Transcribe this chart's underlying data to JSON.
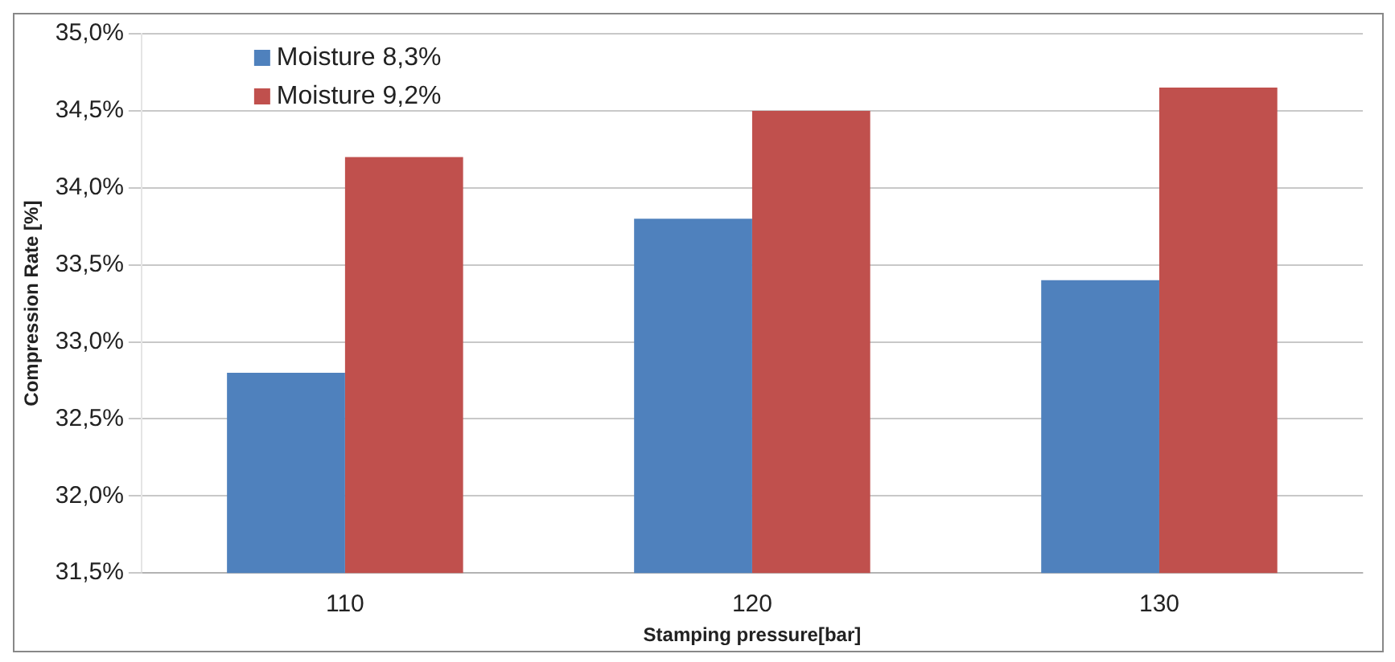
{
  "chart_data": {
    "type": "bar",
    "xlabel": "Stamping pressure[bar]",
    "ylabel": "Compression Rate [%]",
    "categories": [
      "110",
      "120",
      "130"
    ],
    "series": [
      {
        "name": "Moisture 8,3%",
        "color": "#4f81bd",
        "values": [
          32.8,
          33.8,
          33.4
        ]
      },
      {
        "name": "Moisture 9,2%",
        "color": "#c0504d",
        "values": [
          34.2,
          34.5,
          34.65
        ]
      }
    ],
    "ylim": [
      31.5,
      35
    ],
    "yticks": [
      {
        "value": 31.5,
        "label": "31,5%"
      },
      {
        "value": 32,
        "label": "32,0%"
      },
      {
        "value": 32.5,
        "label": "32,5%"
      },
      {
        "value": 33,
        "label": "33,0%"
      },
      {
        "value": 33.5,
        "label": "33,5%"
      },
      {
        "value": 34,
        "label": "34,0%"
      },
      {
        "value": 34.5,
        "label": "34,5%"
      },
      {
        "value": 35,
        "label": "35,0%"
      }
    ],
    "grid": "y",
    "legend": "top left"
  }
}
